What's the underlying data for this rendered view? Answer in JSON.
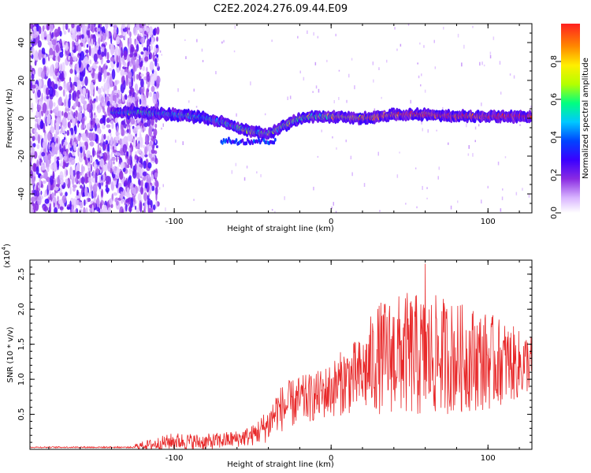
{
  "figure_title": "C2E2.2024.276.09.44.E09",
  "chart_data": [
    {
      "type": "heatmap",
      "xlabel": "Height of straight line (km)",
      "ylabel": "Frequency (Hz)",
      "xlim": [
        -192,
        128
      ],
      "ylim": [
        -50,
        50
      ],
      "x_ticks": [
        -100,
        0,
        100
      ],
      "y_ticks": [
        -40,
        -20,
        0,
        20,
        40
      ],
      "colorbar": {
        "label": "Normalized spectral amplitude",
        "range": [
          0,
          1
        ],
        "ticks": [
          0.0,
          0.2,
          0.4,
          0.6,
          0.8
        ],
        "tick_labels": [
          "0.0",
          "0.2",
          "0.4",
          "0.6",
          "0.8"
        ],
        "colormap": [
          "#ffffff",
          "#d8b4ff",
          "#8a2be2",
          "#3a00ff",
          "#0044ff",
          "#00c8ff",
          "#00ff80",
          "#b4ff00",
          "#ffee00",
          "#ff8800",
          "#ff2020"
        ]
      },
      "ridge": {
        "description_points_x": [
          -140,
          -120,
          -100,
          -80,
          -70,
          -60,
          -50,
          -40,
          -30,
          -20,
          -10,
          0,
          20,
          40,
          60,
          80,
          100,
          120,
          128
        ],
        "description_points_y": [
          3,
          3,
          2,
          0,
          -2,
          -5,
          -7,
          -8,
          -4,
          0,
          1,
          1,
          0,
          2,
          2,
          1,
          1,
          1,
          1
        ]
      },
      "noise_region_x": [
        -192,
        -120
      ]
    },
    {
      "type": "line",
      "xlabel": "Height of straight line (km)",
      "ylabel": "SNR (10 * v/v)",
      "y_scale_label": "(x10",
      "y_scale_exp": "4",
      "xlim": [
        -192,
        128
      ],
      "ylim": [
        0,
        2.7
      ],
      "x_ticks": [
        -100,
        0,
        100
      ],
      "y_ticks": [
        0.5,
        1.0,
        1.5,
        2.0,
        2.5
      ],
      "series_color": "#e8292a",
      "envelope": {
        "x": [
          -192,
          -130,
          -110,
          -100,
          -80,
          -60,
          -50,
          -40,
          -35,
          -30,
          -20,
          -10,
          0,
          10,
          20,
          25,
          30,
          40,
          50,
          60,
          70,
          80,
          90,
          100,
          110,
          120,
          128
        ],
        "mean": [
          0.03,
          0.03,
          0.08,
          0.12,
          0.1,
          0.15,
          0.2,
          0.35,
          0.55,
          0.6,
          0.7,
          0.75,
          0.85,
          1.0,
          1.05,
          1.2,
          1.3,
          1.35,
          1.35,
          1.3,
          1.35,
          1.3,
          1.3,
          1.25,
          1.25,
          1.2,
          1.25
        ],
        "spread": [
          0.02,
          0.02,
          0.1,
          0.12,
          0.12,
          0.12,
          0.15,
          0.25,
          0.3,
          0.35,
          0.35,
          0.35,
          0.4,
          0.5,
          0.55,
          0.7,
          0.8,
          0.85,
          0.9,
          0.9,
          0.85,
          0.8,
          0.75,
          0.7,
          0.6,
          0.5,
          0.4
        ]
      },
      "peak": {
        "x": 60,
        "y": 2.65
      }
    }
  ]
}
